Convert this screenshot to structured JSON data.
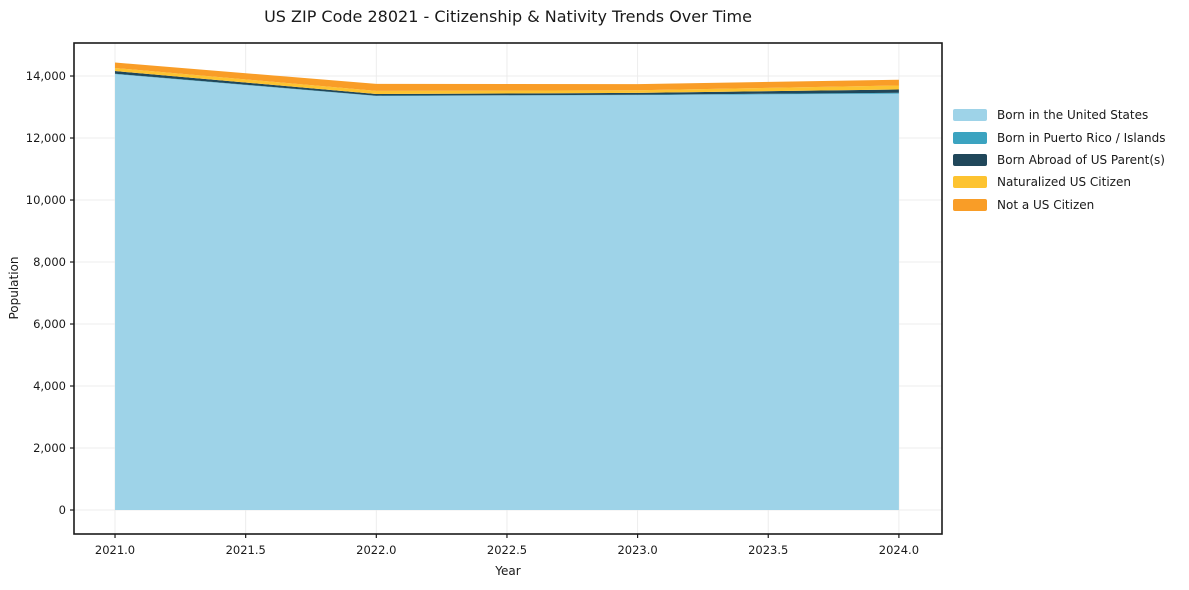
{
  "title": "US ZIP Code 28021 - Citizenship & Nativity Trends Over Time",
  "colors": {
    "background": "#ffffff",
    "grid": "#ececec",
    "axis": "#1a1a1a",
    "text": "#1a1a1a"
  },
  "chart_data": {
    "type": "area",
    "stacked": true,
    "title": "US ZIP Code 28021 - Citizenship & Nativity Trends Over Time",
    "xlabel": "Year",
    "ylabel": "Population",
    "x": [
      2021,
      2022,
      2023,
      2024
    ],
    "series": [
      {
        "name": "Born in the United States",
        "color": "#9ED3E8",
        "values": [
          14060,
          13355,
          13385,
          13430
        ]
      },
      {
        "name": "Born in Puerto Rico / Islands",
        "color": "#3BA3C0",
        "values": [
          15,
          10,
          10,
          30
        ]
      },
      {
        "name": "Born Abroad of US Parent(s)",
        "color": "#20475A",
        "values": [
          85,
          55,
          60,
          105
        ]
      },
      {
        "name": "Naturalized US Citizen",
        "color": "#FDC330",
        "values": [
          100,
          100,
          85,
          130
        ]
      },
      {
        "name": "Not a US Citizen",
        "color": "#F99D27",
        "values": [
          175,
          225,
          200,
          185
        ]
      }
    ],
    "xticks": [
      2021.0,
      2021.5,
      2022.0,
      2022.5,
      2023.0,
      2023.5,
      2024.0
    ],
    "xtick_labels": [
      "2021.0",
      "2021.5",
      "2022.0",
      "2022.5",
      "2023.0",
      "2023.5",
      "2024.0"
    ],
    "yticks": [
      0,
      2000,
      4000,
      6000,
      8000,
      10000,
      12000,
      14000
    ],
    "ytick_labels": [
      "0",
      "2,000",
      "4,000",
      "6,000",
      "8,000",
      "10,000",
      "12,000",
      "14,000"
    ],
    "xlim": [
      2020.843,
      2024.165
    ],
    "ylim": [
      -774,
      15065
    ],
    "grid": true,
    "legend_position": "outside-right-top"
  }
}
